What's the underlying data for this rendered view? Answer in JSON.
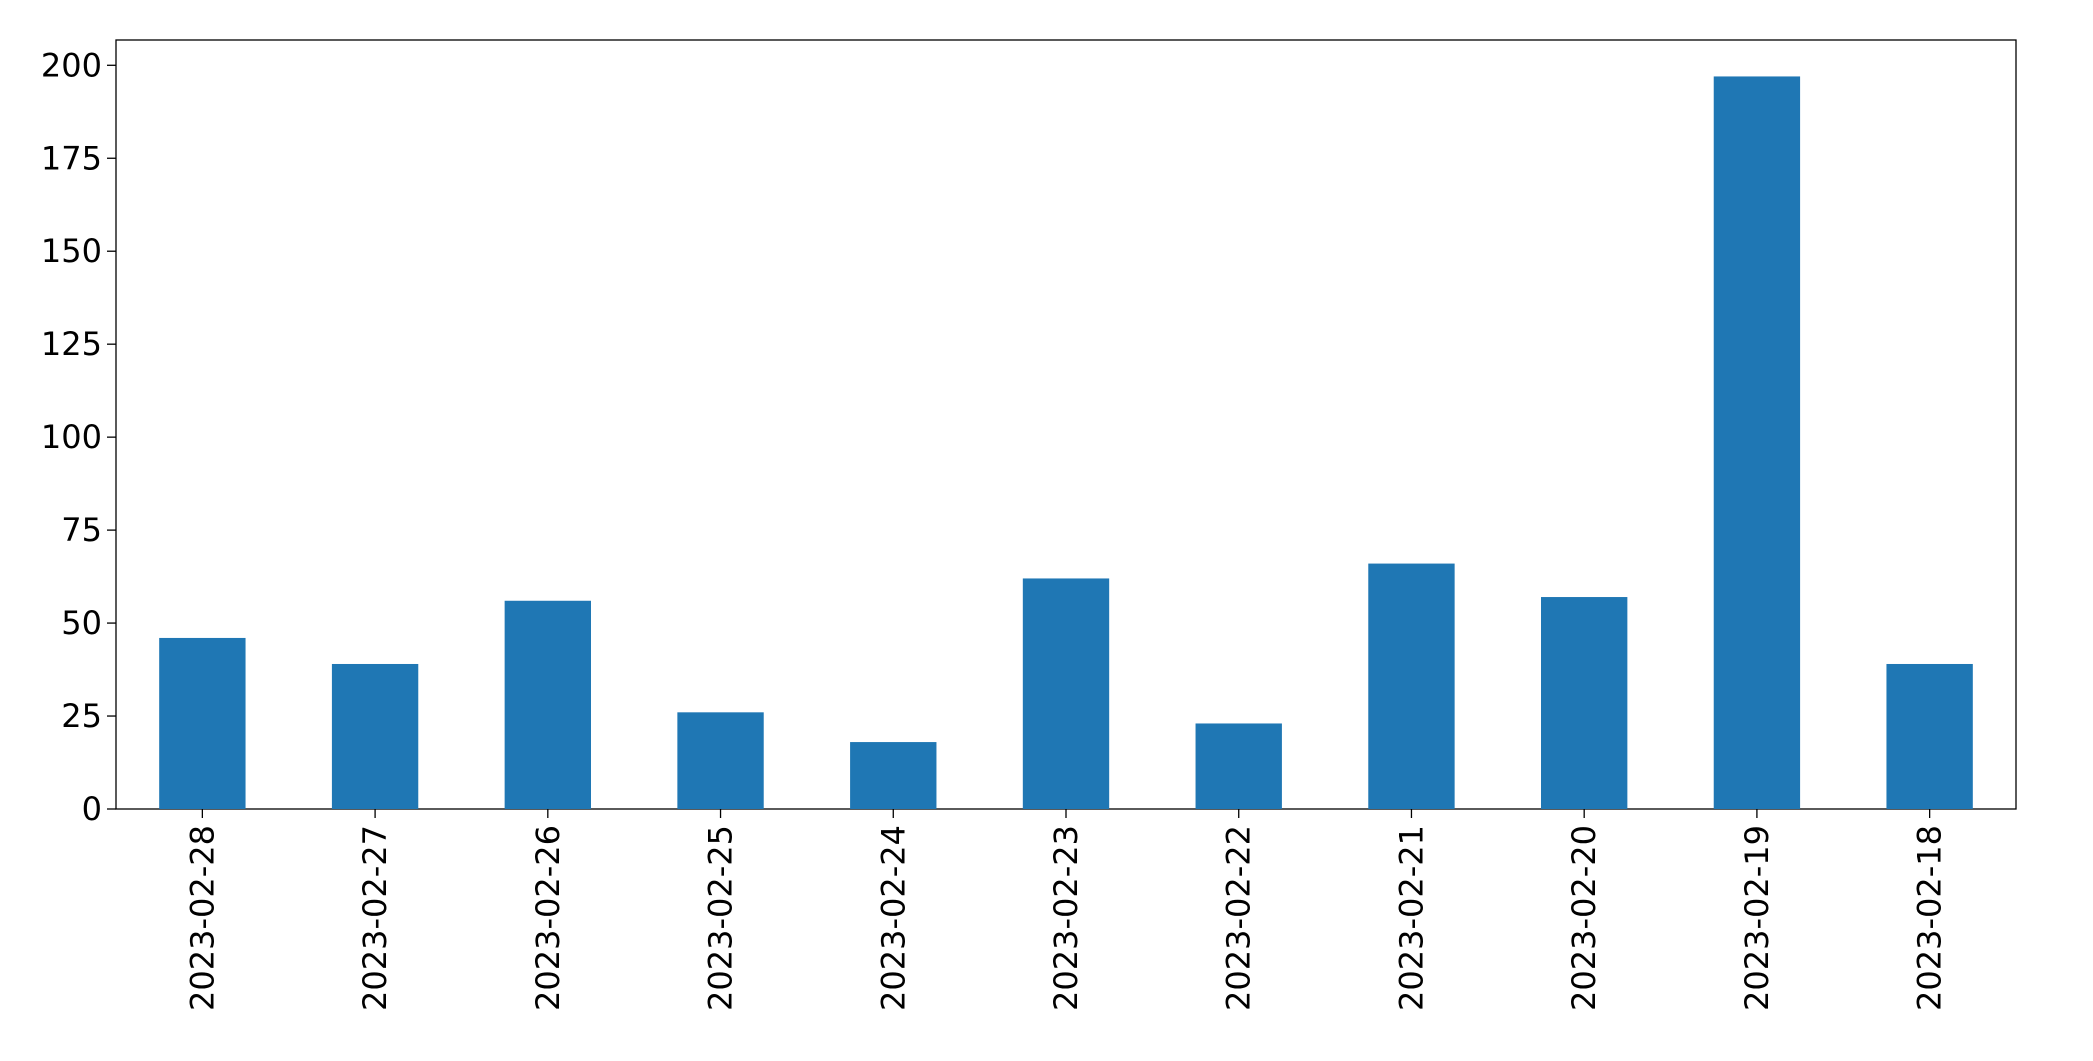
{
  "chart_data": {
    "type": "bar",
    "categories": [
      "2023-02-28",
      "2023-02-27",
      "2023-02-26",
      "2023-02-25",
      "2023-02-24",
      "2023-02-23",
      "2023-02-22",
      "2023-02-21",
      "2023-02-20",
      "2023-02-19",
      "2023-02-18"
    ],
    "values": [
      46,
      39,
      56,
      26,
      18,
      62,
      23,
      66,
      57,
      197,
      39
    ],
    "color": "#1f77b4",
    "ylim": [
      0,
      206.8
    ],
    "yticks": [
      0,
      25,
      50,
      75,
      100,
      125,
      150,
      175,
      200
    ],
    "grid": false
  }
}
